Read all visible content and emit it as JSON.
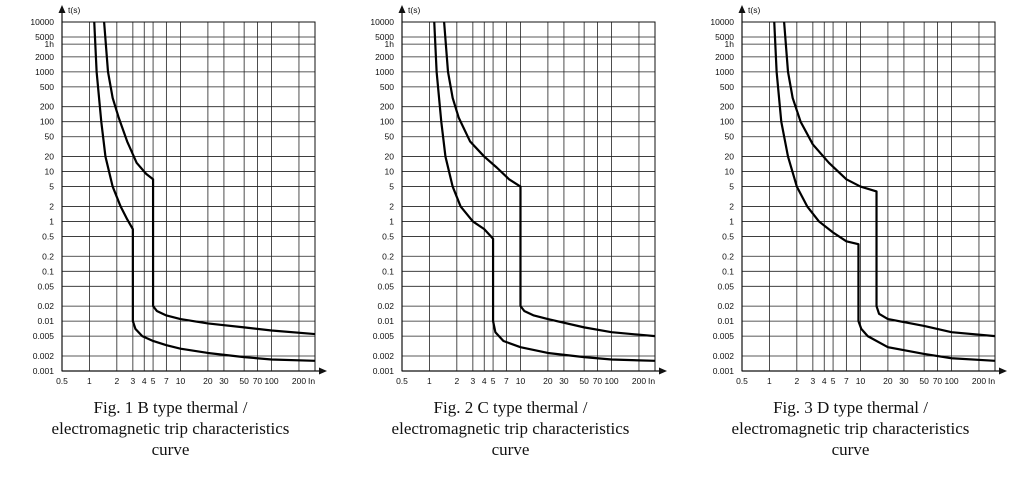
{
  "chart_data": [
    {
      "type": "line",
      "title": "Fig. 1 B type thermal / electromagnetic trip characteristics curve",
      "caption_lines": [
        "Fig. 1 B type thermal /",
        "electromagnetic trip characteristics",
        "curve"
      ],
      "xlabel": "In",
      "ylabel": "t(s)",
      "xscale": "log",
      "yscale": "log",
      "xlim": [
        0.5,
        300
      ],
      "ylim": [
        0.001,
        10000
      ],
      "grid": true,
      "x_ticks": [
        0.5,
        1,
        2,
        3,
        4,
        5,
        7,
        10,
        20,
        30,
        50,
        70,
        100,
        200
      ],
      "x_tick_labels": [
        "0.5",
        "1",
        "2",
        "3",
        "4",
        "5",
        "7",
        "10",
        "20",
        "30",
        "50",
        "70",
        "100",
        "200"
      ],
      "y_ticks": [
        10000,
        5000,
        3600,
        2000,
        1000,
        500,
        200,
        100,
        50,
        20,
        10,
        5,
        2,
        1,
        0.5,
        0.2,
        0.1,
        0.05,
        0.02,
        0.01,
        0.005,
        0.002,
        0.001
      ],
      "y_tick_labels": [
        "10000",
        "5000",
        "1h",
        "2000",
        "1000",
        "500",
        "200",
        "100",
        "50",
        "20",
        "10",
        "5",
        "2",
        "1",
        "0.5",
        "0.2",
        "0.1",
        "0.05",
        "0.02",
        "0.01",
        "0.005",
        "0.002",
        "0.001"
      ],
      "series": [
        {
          "x": [
            1.13,
            1.2,
            1.35,
            1.5,
            1.8,
            2.2,
            2.6,
            3.0,
            3.0,
            3.2,
            3.8,
            5,
            7,
            10,
            20,
            50,
            100,
            300
          ],
          "y": [
            10000,
            1000,
            100,
            20,
            5,
            2,
            1.1,
            0.7,
            0.01,
            0.007,
            0.005,
            0.004,
            0.0033,
            0.0028,
            0.0023,
            0.0019,
            0.0017,
            0.0016
          ]
        },
        {
          "x": [
            1.45,
            1.6,
            1.8,
            2.1,
            2.6,
            3.3,
            4.2,
            5.0,
            5.0,
            5.5,
            7,
            10,
            20,
            50,
            100,
            300
          ],
          "y": [
            10000,
            1000,
            300,
            120,
            40,
            15,
            9,
            7,
            0.02,
            0.016,
            0.013,
            0.011,
            0.009,
            0.0075,
            0.0065,
            0.0055
          ]
        }
      ]
    },
    {
      "type": "line",
      "title": "Fig. 2 C type thermal / electromagnetic trip characteristics curve",
      "caption_lines": [
        "Fig. 2 C type thermal /",
        "electromagnetic trip characteristics",
        "curve"
      ],
      "xlabel": "In",
      "ylabel": "t(s)",
      "xscale": "log",
      "yscale": "log",
      "xlim": [
        0.5,
        300
      ],
      "ylim": [
        0.001,
        10000
      ],
      "grid": true,
      "x_ticks": [
        0.5,
        1,
        2,
        3,
        4,
        5,
        7,
        10,
        20,
        30,
        50,
        70,
        100,
        200
      ],
      "x_tick_labels": [
        "0.5",
        "1",
        "2",
        "3",
        "4",
        "5",
        "7",
        "10",
        "20",
        "30",
        "50",
        "70",
        "100",
        "200"
      ],
      "y_ticks": [
        10000,
        5000,
        3600,
        2000,
        1000,
        500,
        200,
        100,
        50,
        20,
        10,
        5,
        2,
        1,
        0.5,
        0.2,
        0.1,
        0.05,
        0.02,
        0.01,
        0.005,
        0.002,
        0.001
      ],
      "y_tick_labels": [
        "10000",
        "5000",
        "1h",
        "2000",
        "1000",
        "500",
        "200",
        "100",
        "50",
        "20",
        "10",
        "5",
        "2",
        "1",
        "0.5",
        "0.2",
        "0.1",
        "0.05",
        "0.02",
        "0.01",
        "0.005",
        "0.002",
        "0.001"
      ],
      "series": [
        {
          "x": [
            1.13,
            1.2,
            1.35,
            1.5,
            1.8,
            2.2,
            3.0,
            4.0,
            5.0,
            5.0,
            5.3,
            6.5,
            10,
            20,
            50,
            100,
            300
          ],
          "y": [
            10000,
            1000,
            100,
            20,
            5,
            2,
            1,
            0.7,
            0.45,
            0.01,
            0.006,
            0.004,
            0.003,
            0.0023,
            0.0019,
            0.0017,
            0.0016
          ]
        },
        {
          "x": [
            1.45,
            1.6,
            1.8,
            2.1,
            2.8,
            4.0,
            5.5,
            7.5,
            10,
            10,
            11,
            14,
            20,
            50,
            100,
            300
          ],
          "y": [
            10000,
            1000,
            300,
            120,
            40,
            20,
            12,
            7,
            5,
            0.02,
            0.016,
            0.013,
            0.011,
            0.0075,
            0.006,
            0.005
          ]
        }
      ]
    },
    {
      "type": "line",
      "title": "Fig. 3 D type thermal / electromagnetic trip characteristics curve",
      "caption_lines": [
        "Fig. 3 D type thermal /",
        "electromagnetic trip characteristics",
        "curve"
      ],
      "xlabel": "In",
      "ylabel": "t(s)",
      "xscale": "log",
      "yscale": "log",
      "xlim": [
        0.5,
        300
      ],
      "ylim": [
        0.001,
        10000
      ],
      "grid": true,
      "x_ticks": [
        0.5,
        1,
        2,
        3,
        4,
        5,
        7,
        10,
        20,
        30,
        50,
        70,
        100,
        200
      ],
      "x_tick_labels": [
        "0.5",
        "1",
        "2",
        "3",
        "4",
        "5",
        "7",
        "10",
        "20",
        "30",
        "50",
        "70",
        "100",
        "200"
      ],
      "y_ticks": [
        10000,
        5000,
        3600,
        2000,
        1000,
        500,
        200,
        100,
        50,
        20,
        10,
        5,
        2,
        1,
        0.5,
        0.2,
        0.1,
        0.05,
        0.02,
        0.01,
        0.005,
        0.002,
        0.001
      ],
      "y_tick_labels": [
        "10000",
        "5000",
        "1h",
        "2000",
        "1000",
        "500",
        "200",
        "100",
        "50",
        "20",
        "10",
        "5",
        "2",
        "1",
        "0.5",
        "0.2",
        "0.1",
        "0.05",
        "0.02",
        "0.01",
        "0.005",
        "0.002",
        "0.001"
      ],
      "series": [
        {
          "x": [
            1.13,
            1.2,
            1.35,
            1.6,
            2.0,
            2.6,
            3.5,
            5.0,
            7.0,
            9.5,
            9.5,
            10.2,
            12,
            20,
            50,
            100,
            300
          ],
          "y": [
            10000,
            1000,
            100,
            20,
            5,
            2,
            1,
            0.6,
            0.4,
            0.35,
            0.01,
            0.007,
            0.005,
            0.003,
            0.0022,
            0.0018,
            0.0016
          ]
        },
        {
          "x": [
            1.45,
            1.6,
            1.8,
            2.2,
            3.0,
            4.5,
            7.0,
            10,
            15,
            15,
            16,
            20,
            50,
            100,
            300
          ],
          "y": [
            10000,
            1000,
            300,
            100,
            35,
            15,
            7,
            5,
            4,
            0.02,
            0.014,
            0.011,
            0.008,
            0.006,
            0.005
          ]
        }
      ]
    }
  ]
}
